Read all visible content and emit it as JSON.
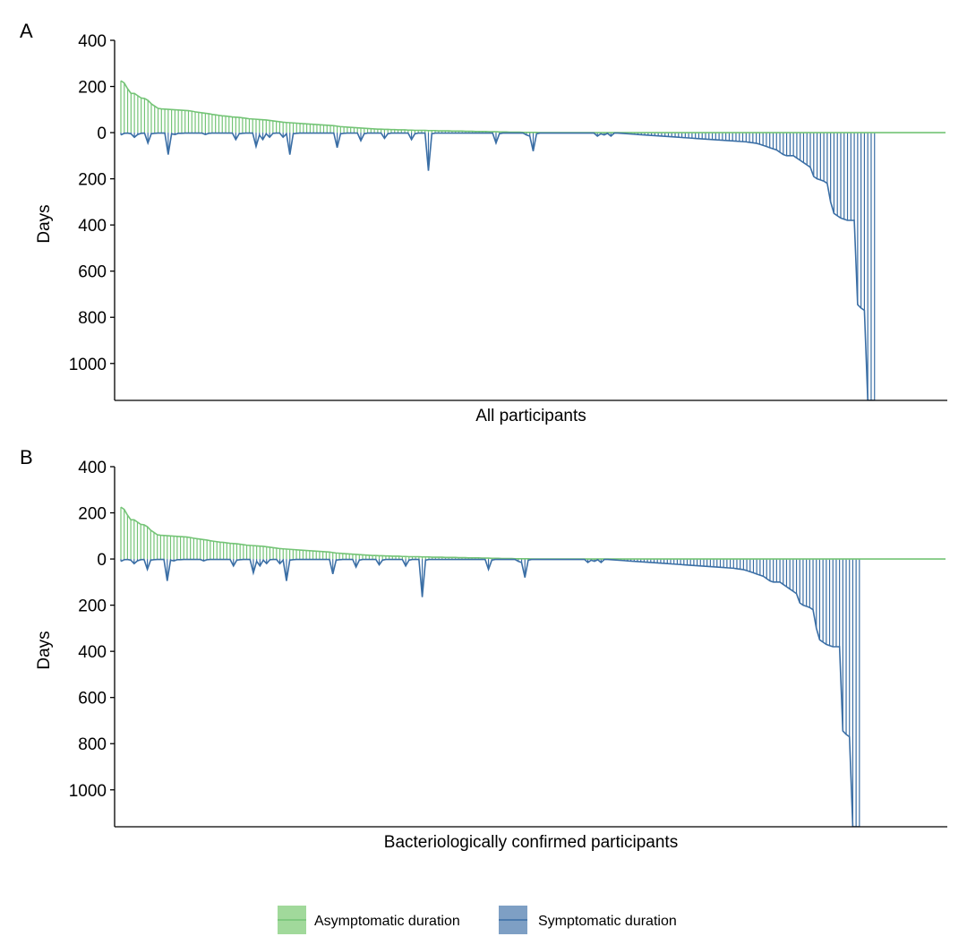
{
  "legend": {
    "items": [
      {
        "label": "Asymptomatic duration",
        "color": "#74c476",
        "fill": "#a1d99b"
      },
      {
        "label": "Symptomatic duration",
        "color": "#3a6ea5",
        "fill": "#7e9fc4"
      }
    ]
  },
  "chart_data": [
    {
      "type": "area",
      "panel": "A",
      "xlabel": "All participants",
      "ylabel": "Days",
      "ylim": [
        -1160,
        400
      ],
      "y_ticks": [
        400,
        200,
        0,
        -200,
        -400,
        -600,
        -800,
        -1000
      ],
      "y_tick_labels": [
        "400",
        "200",
        "0",
        "200",
        "400",
        "600",
        "800",
        "1000"
      ],
      "grid": false,
      "series": [
        {
          "name": "Asymptomatic duration",
          "values": [
            225,
            215,
            190,
            170,
            170,
            160,
            150,
            148,
            140,
            125,
            115,
            105,
            103,
            102,
            101,
            100,
            99,
            98,
            97,
            96,
            95,
            93,
            90,
            88,
            86,
            84,
            82,
            79,
            77,
            75,
            73,
            72,
            70,
            68,
            67,
            66,
            64,
            62,
            60,
            59,
            58,
            57,
            56,
            55,
            53,
            51,
            49,
            47,
            45,
            44,
            43,
            42,
            41,
            40,
            39,
            38,
            37,
            36,
            35,
            34,
            33,
            32,
            31,
            30,
            28,
            26,
            25,
            24,
            23,
            22,
            21,
            20,
            19,
            18,
            17,
            16,
            15,
            15,
            14,
            14,
            13,
            13,
            12,
            12,
            12,
            11,
            11,
            10,
            10,
            10,
            10,
            9,
            9,
            9,
            8,
            8,
            8,
            8,
            7,
            7,
            7,
            7,
            6,
            6,
            6,
            5,
            5,
            5,
            5,
            4,
            4,
            4,
            3,
            3,
            3,
            2,
            2,
            2,
            2,
            1,
            1,
            1,
            1,
            1,
            0,
            0,
            0,
            0,
            0,
            0,
            0,
            0,
            0,
            0,
            0,
            0,
            0,
            0,
            0,
            0,
            0,
            0,
            0,
            0,
            0,
            0,
            0,
            0,
            0,
            0,
            0,
            0,
            0,
            0,
            0,
            0,
            0,
            0,
            0,
            0,
            0,
            0,
            0,
            0,
            0,
            0,
            0,
            0,
            0,
            0,
            0,
            0,
            0,
            0,
            0,
            0,
            0,
            0,
            0,
            0,
            0,
            0,
            0,
            0,
            0,
            0,
            0,
            0,
            0,
            0,
            0,
            0,
            0,
            0,
            0,
            0,
            0,
            0,
            0,
            0,
            0,
            0,
            0,
            0,
            0,
            0,
            0,
            0,
            0,
            0,
            0,
            0,
            0,
            0,
            0,
            0,
            0,
            0,
            0,
            0,
            0,
            0,
            0,
            0,
            0,
            0,
            0,
            0,
            0,
            0,
            0,
            0,
            0,
            0,
            0,
            0,
            0,
            0,
            0,
            0,
            0,
            0,
            0,
            0,
            0
          ]
        },
        {
          "name": "Symptomatic duration",
          "values": [
            -10,
            -3,
            -2,
            -5,
            -20,
            -8,
            -3,
            -2,
            -45,
            -5,
            -3,
            -2,
            -2,
            -2,
            -95,
            -5,
            -8,
            -3,
            -3,
            -2,
            -2,
            -2,
            -2,
            -2,
            -2,
            -8,
            -3,
            -2,
            -2,
            -2,
            -2,
            -2,
            -2,
            -2,
            -30,
            -5,
            -3,
            -2,
            -2,
            -2,
            -60,
            -10,
            -30,
            -5,
            -20,
            -3,
            -2,
            -2,
            -20,
            -5,
            -95,
            -5,
            -3,
            -2,
            -2,
            -2,
            -2,
            -2,
            -2,
            -2,
            -2,
            -2,
            -2,
            -2,
            -65,
            -5,
            -3,
            -2,
            -2,
            -2,
            -2,
            -35,
            -5,
            -2,
            -2,
            -2,
            -2,
            -2,
            -25,
            -5,
            -2,
            -2,
            -2,
            -2,
            -2,
            -2,
            -30,
            -5,
            -2,
            -2,
            -2,
            -165,
            -5,
            -2,
            -2,
            -2,
            -2,
            -2,
            -2,
            -2,
            -2,
            -2,
            -2,
            -2,
            -2,
            -2,
            -2,
            -2,
            -2,
            -2,
            -2,
            -45,
            -5,
            -2,
            -2,
            -2,
            -2,
            -2,
            -2,
            -2,
            -10,
            -15,
            -80,
            -5,
            -2,
            -2,
            -2,
            -2,
            -2,
            -2,
            -2,
            -2,
            -2,
            -2,
            -2,
            -2,
            -2,
            -2,
            -2,
            -2,
            -2,
            -15,
            -5,
            -10,
            -3,
            -15,
            -2,
            -2,
            -3,
            -4,
            -5,
            -6,
            -7,
            -8,
            -9,
            -10,
            -11,
            -12,
            -13,
            -14,
            -15,
            -16,
            -17,
            -18,
            -19,
            -20,
            -21,
            -22,
            -23,
            -24,
            -25,
            -26,
            -27,
            -28,
            -29,
            -30,
            -31,
            -32,
            -33,
            -34,
            -35,
            -36,
            -37,
            -38,
            -39,
            -40,
            -42,
            -44,
            -46,
            -50,
            -55,
            -60,
            -65,
            -70,
            -75,
            -85,
            -95,
            -100,
            -100,
            -100,
            -110,
            -120,
            -130,
            -140,
            -150,
            -190,
            -200,
            -205,
            -210,
            -220,
            -300,
            -350,
            -360,
            -370,
            -375,
            -380,
            -380,
            -380,
            -745,
            -760,
            -770,
            -1160,
            -1160,
            -1160
          ]
        }
      ]
    },
    {
      "type": "area",
      "panel": "B",
      "xlabel": "Bacteriologically confirmed participants",
      "ylabel": "Days",
      "ylim": [
        -1160,
        400
      ],
      "y_ticks": [
        400,
        200,
        0,
        -200,
        -400,
        -600,
        -800,
        -1000
      ],
      "y_tick_labels": [
        "400",
        "200",
        "0",
        "200",
        "400",
        "600",
        "800",
        "1000"
      ],
      "grid": false,
      "series": [
        {
          "name": "Asymptomatic duration",
          "values": [
            225,
            215,
            190,
            170,
            170,
            160,
            150,
            148,
            140,
            125,
            115,
            105,
            103,
            102,
            101,
            100,
            99,
            98,
            97,
            96,
            95,
            93,
            90,
            88,
            86,
            84,
            82,
            79,
            77,
            75,
            73,
            72,
            70,
            68,
            67,
            66,
            64,
            62,
            60,
            59,
            58,
            57,
            56,
            55,
            53,
            51,
            49,
            47,
            45,
            44,
            43,
            42,
            41,
            40,
            39,
            38,
            37,
            36,
            35,
            34,
            33,
            32,
            31,
            30,
            28,
            26,
            25,
            24,
            23,
            22,
            21,
            20,
            19,
            18,
            17,
            16,
            15,
            15,
            14,
            14,
            13,
            13,
            12,
            12,
            12,
            11,
            11,
            10,
            10,
            10,
            10,
            9,
            9,
            9,
            8,
            8,
            8,
            8,
            7,
            7,
            7,
            7,
            6,
            6,
            6,
            5,
            5,
            5,
            5,
            4,
            4,
            4,
            3,
            3,
            3,
            2,
            2,
            2,
            2,
            1,
            1,
            1,
            1,
            1,
            0,
            0,
            0,
            0,
            0,
            0,
            0,
            0,
            0,
            0,
            0,
            0,
            0,
            0,
            0,
            0,
            0,
            0,
            0,
            0,
            0,
            0,
            0,
            0,
            0,
            0,
            0,
            0,
            0,
            0,
            0,
            0,
            0,
            0,
            0,
            0,
            0,
            0,
            0,
            0,
            0,
            0,
            0,
            0,
            0,
            0,
            0,
            0,
            0,
            0,
            0,
            0,
            0,
            0,
            0,
            0,
            0,
            0,
            0,
            0,
            0,
            0,
            0,
            0,
            0,
            0,
            0,
            0,
            0,
            0,
            0,
            0,
            0,
            0,
            0,
            0,
            0,
            0,
            0,
            0,
            0,
            0,
            0,
            0,
            0,
            0,
            0,
            0,
            0,
            0,
            0,
            0,
            0,
            0,
            0,
            0,
            0,
            0,
            0,
            0,
            0,
            0,
            0,
            0,
            0,
            0,
            0,
            0,
            0,
            0,
            0,
            0,
            0,
            0,
            0,
            0,
            0,
            0,
            0,
            0,
            0,
            0,
            0,
            0,
            0,
            0
          ]
        },
        {
          "name": "Symptomatic duration",
          "values": [
            -10,
            -3,
            -2,
            -5,
            -20,
            -8,
            -3,
            -2,
            -45,
            -5,
            -3,
            -2,
            -2,
            -2,
            -95,
            -5,
            -8,
            -3,
            -3,
            -2,
            -2,
            -2,
            -2,
            -2,
            -2,
            -8,
            -3,
            -2,
            -2,
            -2,
            -2,
            -2,
            -2,
            -2,
            -30,
            -5,
            -3,
            -2,
            -2,
            -2,
            -60,
            -10,
            -30,
            -5,
            -20,
            -3,
            -2,
            -2,
            -20,
            -5,
            -95,
            -5,
            -3,
            -2,
            -2,
            -2,
            -2,
            -2,
            -2,
            -2,
            -2,
            -2,
            -2,
            -2,
            -65,
            -5,
            -3,
            -2,
            -2,
            -2,
            -2,
            -35,
            -5,
            -2,
            -2,
            -2,
            -2,
            -2,
            -25,
            -5,
            -2,
            -2,
            -2,
            -2,
            -2,
            -2,
            -30,
            -5,
            -2,
            -2,
            -2,
            -165,
            -5,
            -2,
            -2,
            -2,
            -2,
            -2,
            -2,
            -2,
            -2,
            -2,
            -2,
            -2,
            -2,
            -2,
            -2,
            -2,
            -2,
            -2,
            -2,
            -45,
            -5,
            -2,
            -2,
            -2,
            -2,
            -2,
            -2,
            -2,
            -10,
            -15,
            -80,
            -5,
            -2,
            -2,
            -2,
            -2,
            -2,
            -2,
            -2,
            -2,
            -2,
            -2,
            -2,
            -2,
            -2,
            -2,
            -2,
            -2,
            -2,
            -15,
            -5,
            -10,
            -3,
            -15,
            -2,
            -2,
            -3,
            -4,
            -5,
            -6,
            -7,
            -8,
            -9,
            -10,
            -11,
            -12,
            -13,
            -14,
            -15,
            -16,
            -17,
            -18,
            -19,
            -20,
            -21,
            -22,
            -23,
            -24,
            -25,
            -26,
            -27,
            -28,
            -29,
            -30,
            -31,
            -32,
            -33,
            -34,
            -35,
            -36,
            -37,
            -38,
            -39,
            -40,
            -42,
            -44,
            -46,
            -50,
            -55,
            -60,
            -65,
            -70,
            -75,
            -85,
            -95,
            -100,
            -100,
            -100,
            -110,
            -120,
            -130,
            -140,
            -150,
            -190,
            -200,
            -205,
            -210,
            -220,
            -300,
            -350,
            -360,
            -370,
            -375,
            -380,
            -380,
            -380,
            -745,
            -760,
            -770,
            -1160,
            -1160,
            -1160
          ]
        }
      ]
    }
  ]
}
